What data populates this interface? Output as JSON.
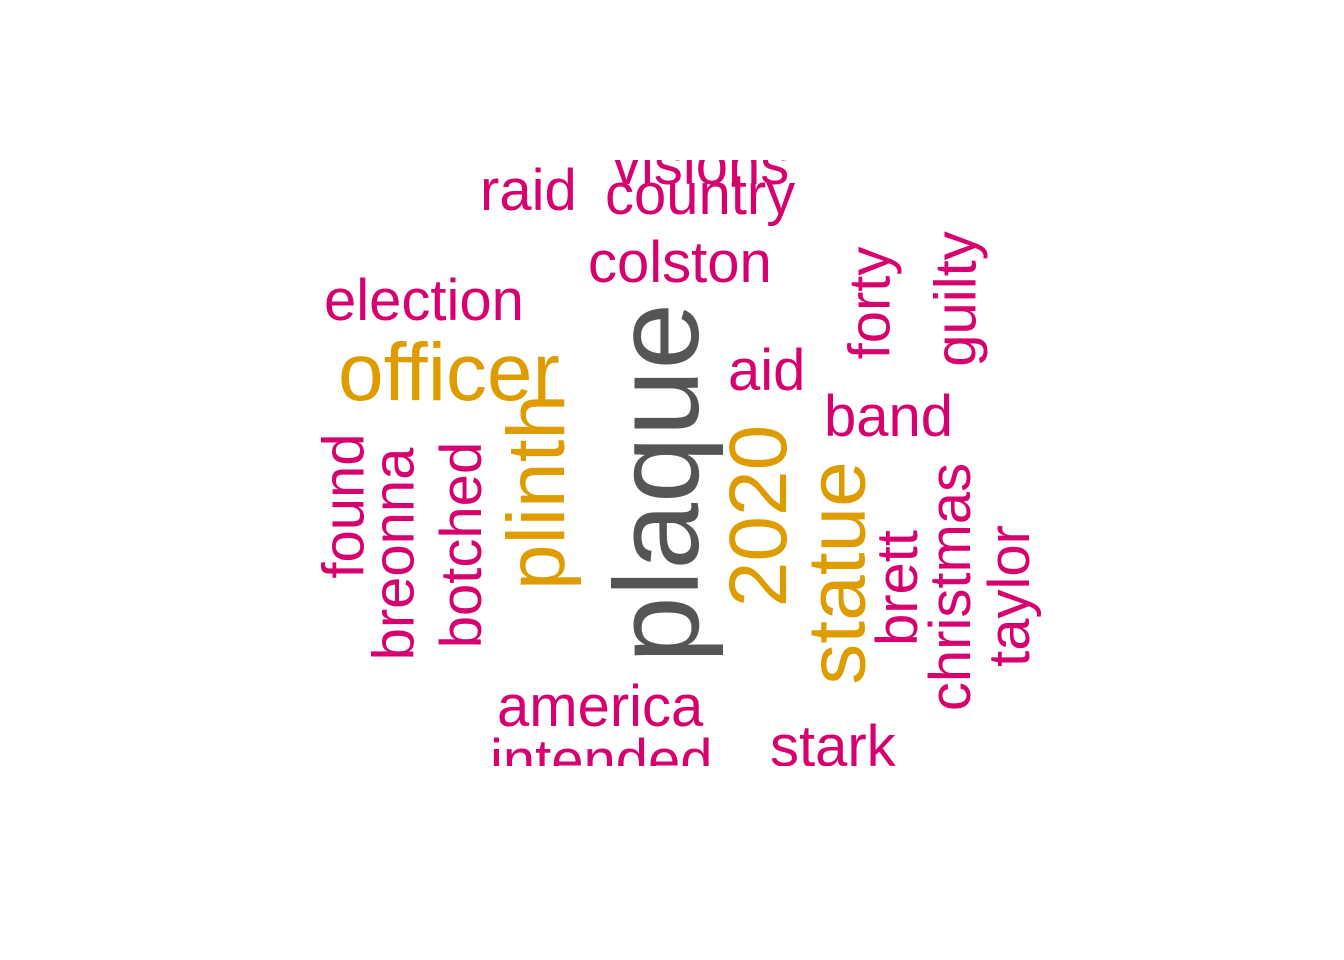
{
  "wordcloud": {
    "colors": {
      "primary": "#d6006f",
      "secondary": "#de9c00",
      "top": "#555555"
    },
    "words": {
      "plaque": "plaque",
      "plinth": "plinth",
      "officer": "officer",
      "statue": "statue",
      "year_2020": "2020",
      "visions": "visions",
      "raid": "raid",
      "country": "country",
      "colston": "colston",
      "election": "election",
      "aid": "aid",
      "band": "band",
      "forty": "forty",
      "guilty": "guilty",
      "found": "found",
      "breonna": "breonna",
      "botched": "botched",
      "brett": "brett",
      "christmas": "christmas",
      "taylor": "taylor",
      "america": "america",
      "intended": "intended",
      "stark": "stark"
    }
  }
}
